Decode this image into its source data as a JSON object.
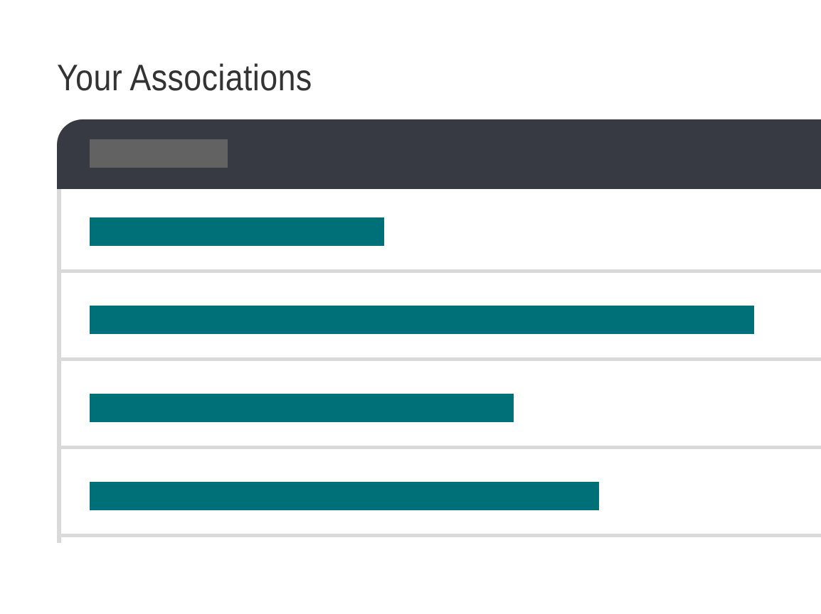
{
  "page": {
    "title": "Your Associations"
  },
  "colors": {
    "title_text": "#333333",
    "header_background": "#373a42",
    "header_placeholder": "#626262",
    "row_placeholder": "#007078",
    "row_divider": "#d9d9d9"
  },
  "associations": {
    "header": {
      "label_placeholder_icon": "redacted-text-placeholder"
    },
    "items": [
      {
        "label_placeholder_icon": "redacted-text-placeholder",
        "relative_length": 0.443
      },
      {
        "label_placeholder_icon": "redacted-text-placeholder",
        "relative_length": 1.0
      },
      {
        "label_placeholder_icon": "redacted-text-placeholder",
        "relative_length": 0.638
      },
      {
        "label_placeholder_icon": "redacted-text-placeholder",
        "relative_length": 0.767
      }
    ]
  }
}
